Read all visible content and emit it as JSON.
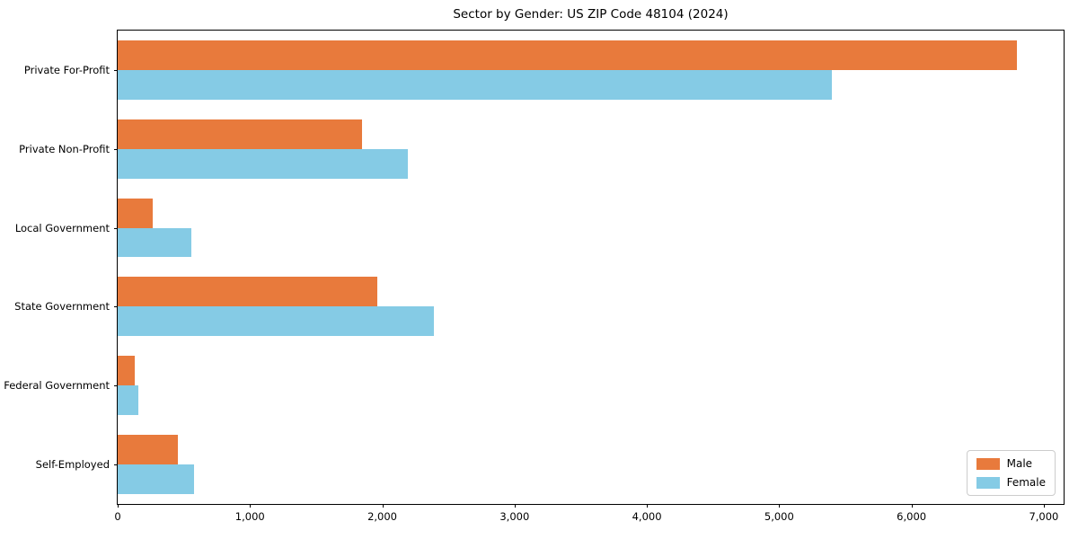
{
  "title": "Sector by Gender: US ZIP Code 48104 (2024)",
  "chart_data": {
    "type": "bar",
    "orientation": "horizontal",
    "title": "Sector by Gender: US ZIP Code 48104 (2024)",
    "categories": [
      "Private For-Profit",
      "Private Non-Profit",
      "Local Government",
      "State Government",
      "Federal Government",
      "Self-Employed"
    ],
    "series": [
      {
        "name": "Male",
        "color": "#e87a3c",
        "values": [
          6800,
          1850,
          265,
          1960,
          130,
          455
        ]
      },
      {
        "name": "Female",
        "color": "#85cbe5",
        "values": [
          5400,
          2190,
          560,
          2390,
          155,
          575
        ]
      }
    ],
    "xlabel": "",
    "ylabel": "",
    "xlim": [
      0,
      7150
    ],
    "x_ticks": [
      {
        "value": 0,
        "label": "0"
      },
      {
        "value": 1000,
        "label": "1,000"
      },
      {
        "value": 2000,
        "label": "2,000"
      },
      {
        "value": 3000,
        "label": "3,000"
      },
      {
        "value": 4000,
        "label": "4,000"
      },
      {
        "value": 5000,
        "label": "5,000"
      },
      {
        "value": 6000,
        "label": "6,000"
      },
      {
        "value": 7000,
        "label": "7,000"
      }
    ],
    "grid": false,
    "legend_position": "lower right"
  },
  "legend": {
    "items": [
      {
        "label": "Male",
        "color": "#e87a3c"
      },
      {
        "label": "Female",
        "color": "#85cbe5"
      }
    ]
  }
}
